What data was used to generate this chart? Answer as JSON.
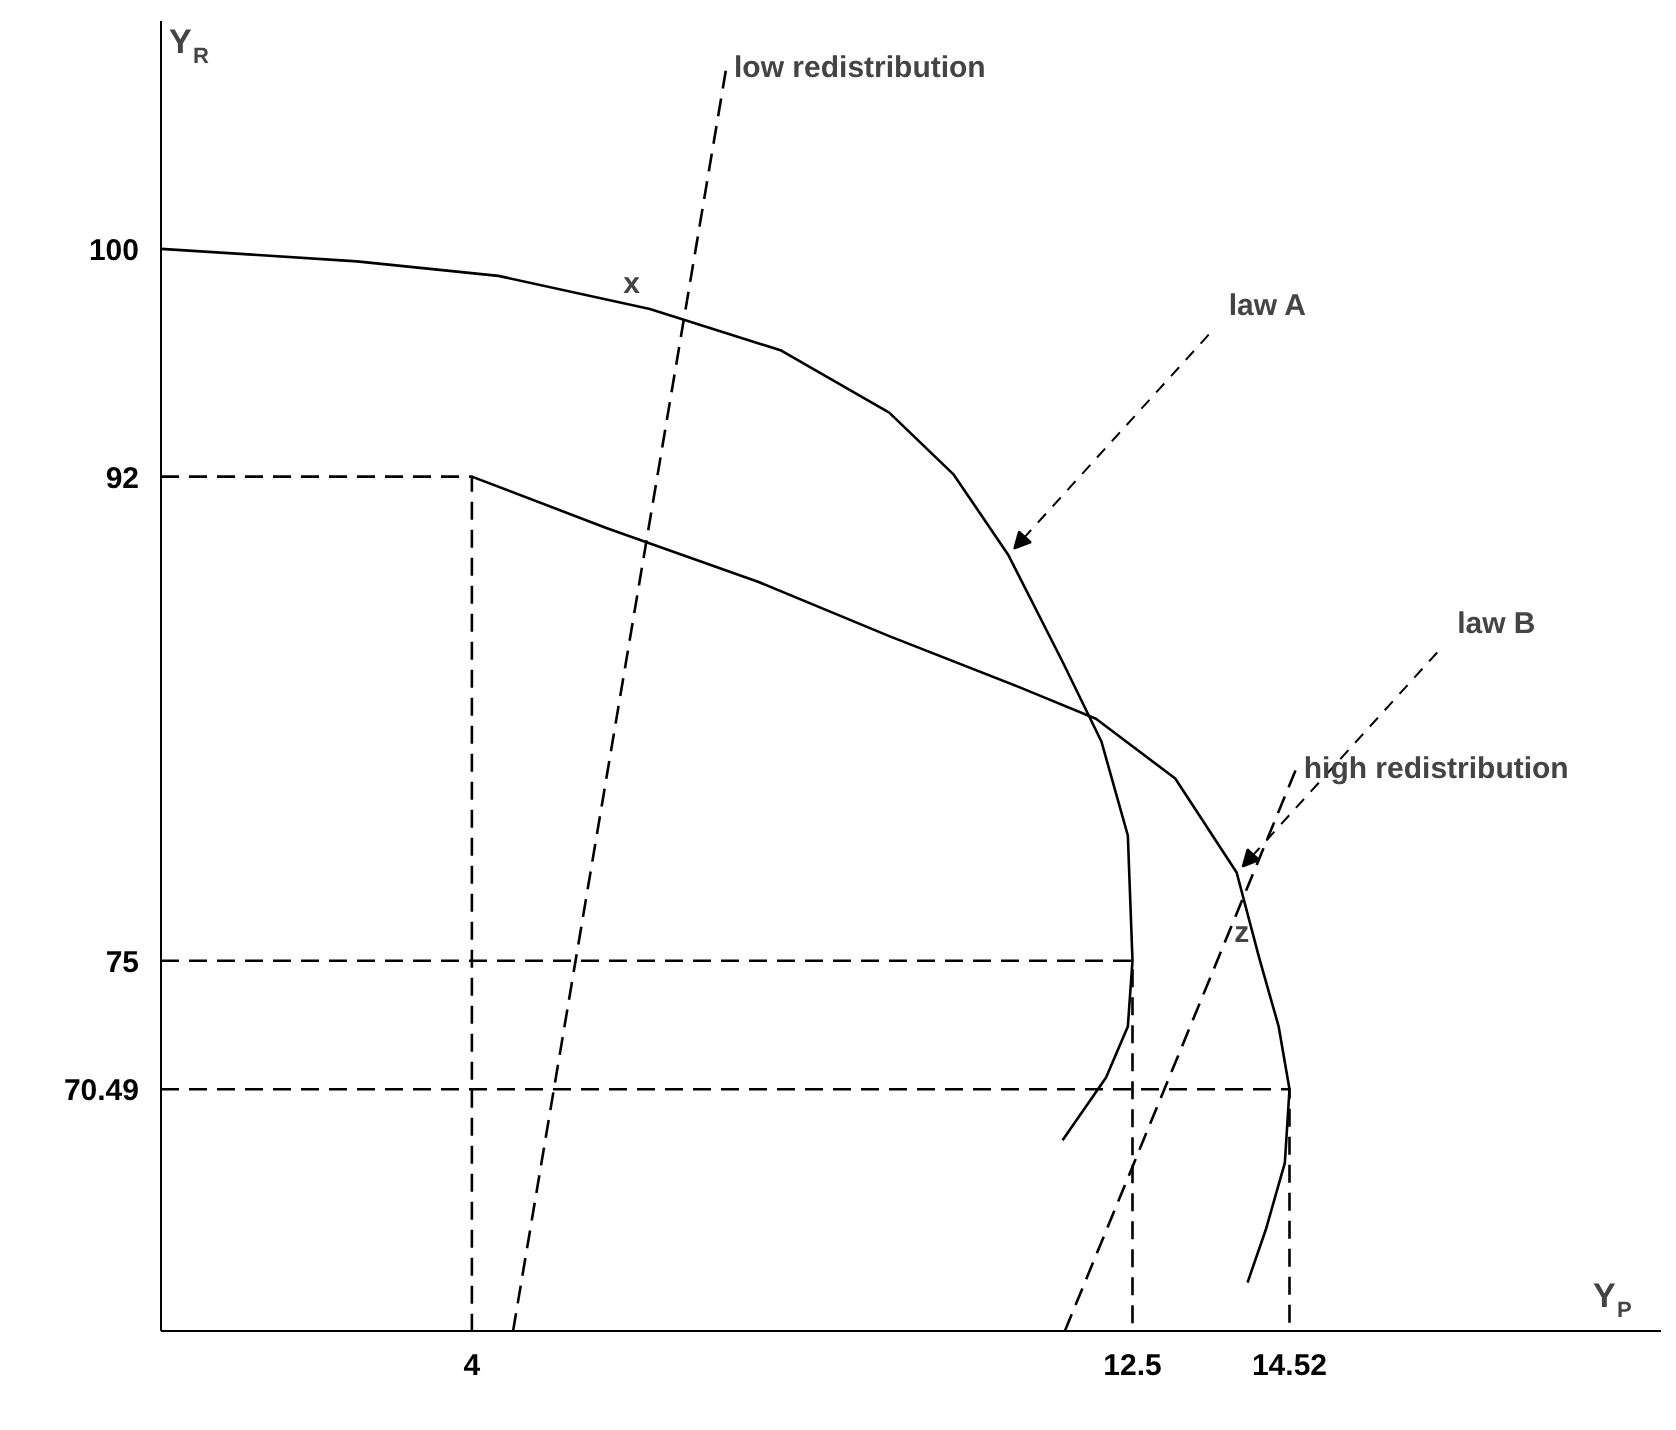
{
  "chart_data": {
    "type": "line",
    "xlabel": "Y$_{P}$",
    "ylabel": "Y$_{R}$",
    "xlim": [
      0,
      19.3
    ],
    "ylim": [
      62,
      108
    ],
    "xticks": [
      4,
      12.5,
      14.52
    ],
    "yticks": [
      70.49,
      75,
      92,
      100
    ],
    "grid": false,
    "marker": "none",
    "series": [
      {
        "name": "law A",
        "color": "#000000",
        "line_style": "solid",
        "x": [
          0,
          2.52,
          4.34,
          6.29,
          7.97,
          9.37,
          10.2,
          10.9,
          11.6,
          12.1,
          12.44,
          12.5,
          12.44,
          12.16,
          11.6
        ],
        "values": [
          100,
          99.56,
          99.05,
          97.89,
          96.44,
          94.25,
          92.07,
          89.26,
          85.5,
          82.7,
          79.4,
          75,
          72.69,
          70.9,
          68.7
        ]
      },
      {
        "name": "law B",
        "color": "#000000",
        "line_style": "solid",
        "x": [
          4,
          5.73,
          7.69,
          9.37,
          11.05,
          12.03,
          13.05,
          13.84,
          14.13,
          14.38,
          14.52,
          14.46,
          14.22,
          13.98
        ],
        "values": [
          92,
          90.2,
          88.3,
          86.4,
          84.6,
          83.5,
          81.4,
          78.1,
          75.1,
          72.7,
          70.49,
          67.9,
          65.6,
          63.7
        ]
      },
      {
        "name": "low redistribution",
        "color": "#000000",
        "line_style": "dashed",
        "x": [
          4.53,
          7.27
        ],
        "values": [
          62,
          106.3
        ]
      },
      {
        "name": "high redistribution",
        "color": "#000000",
        "line_style": "dashed",
        "x": [
          11.63,
          14.6
        ],
        "values": [
          62,
          81.7
        ]
      },
      {
        "color": "#000000",
        "line_style": "dashed",
        "x": [
          0,
          4,
          4
        ],
        "values": [
          92,
          92,
          62
        ]
      },
      {
        "color": "#000000",
        "line_style": "dashed",
        "x": [
          0,
          12.5,
          12.5
        ],
        "values": [
          75,
          75,
          62
        ]
      },
      {
        "color": "#000000",
        "line_style": "dashed",
        "x": [
          0,
          14.52,
          14.52
        ],
        "values": [
          70.49,
          70.49,
          62
        ]
      }
    ],
    "annotations": [
      {
        "text": "x",
        "x": 6.29,
        "y": 97.89
      },
      {
        "text": "z",
        "x": 14.13,
        "y": 75.1
      }
    ]
  }
}
